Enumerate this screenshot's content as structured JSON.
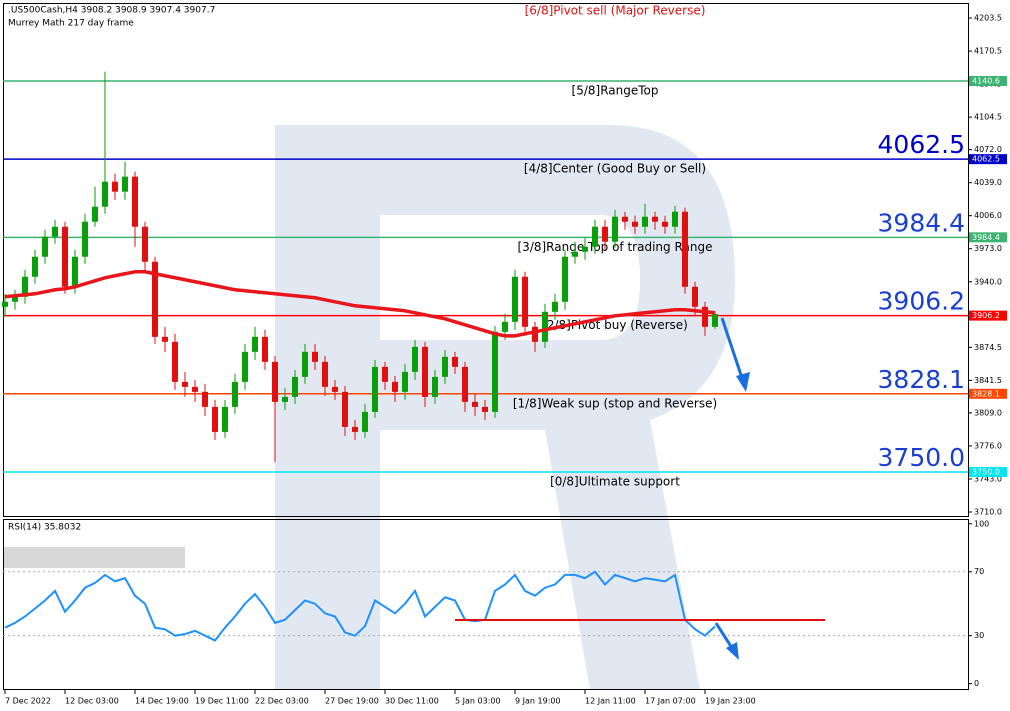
{
  "chart_data": [
    {
      "type": "candlestick",
      "title": ".US500Cash,H4  3908.2 3908.9 3907.4 3907.7",
      "subtitle": "Murrey Math 217 day frame",
      "categories": [
        "7 Dec 2022",
        null,
        null,
        null,
        null,
        null,
        "12 Dec 03:00",
        null,
        null,
        null,
        null,
        null,
        null,
        "14 Dec 19:00",
        null,
        null,
        null,
        null,
        null,
        "19 Dec 11:00",
        null,
        null,
        null,
        null,
        null,
        "22 Dec 03:00",
        null,
        null,
        null,
        null,
        null,
        null,
        "27 Dec 19:00",
        null,
        null,
        null,
        null,
        null,
        "30 Dec 11:00",
        null,
        null,
        null,
        null,
        null,
        null,
        "5 Jan 03:00",
        null,
        null,
        null,
        null,
        null,
        "9 Jan 19:00",
        null,
        null,
        null,
        null,
        null,
        null,
        "12 Jan 11:00",
        null,
        null,
        null,
        null,
        null,
        "17 Jan 07:00",
        null,
        null,
        null,
        null,
        null,
        "19 Jan 23:00",
        null
      ],
      "open": [
        3915,
        3920,
        3925,
        3945,
        3965,
        3985,
        3995,
        3935,
        3965,
        4000,
        4015,
        4040,
        4030,
        4045,
        3995,
        3960,
        3885,
        3880,
        3840,
        3835,
        3830,
        3815,
        3790,
        3815,
        3840,
        3870,
        3885,
        3860,
        3820,
        3825,
        3845,
        3870,
        3860,
        3835,
        3830,
        3795,
        3790,
        3810,
        3855,
        3840,
        3830,
        3850,
        3875,
        3825,
        3845,
        3865,
        3855,
        3820,
        3815,
        3810,
        3890,
        3900,
        3945,
        3895,
        3880,
        3910,
        3920,
        3965,
        3970,
        3975,
        3995,
        3980,
        4005,
        4000,
        3995,
        4005,
        4000,
        3995,
        4010,
        3935,
        3915,
        3895
      ],
      "high": [
        3928,
        3932,
        3952,
        3972,
        3992,
        4002,
        4000,
        3972,
        4008,
        4035,
        4150,
        4048,
        4060,
        4050,
        4000,
        3965,
        3895,
        3888,
        3850,
        3842,
        3838,
        3822,
        3822,
        3848,
        3878,
        3895,
        3892,
        3866,
        3834,
        3852,
        3878,
        3878,
        3866,
        3842,
        3836,
        3802,
        3818,
        3862,
        3860,
        3846,
        3858,
        3882,
        3880,
        3852,
        3872,
        3870,
        3860,
        3828,
        3822,
        3896,
        3908,
        3952,
        3950,
        3900,
        3918,
        3928,
        3972,
        3980,
        3984,
        4002,
        4002,
        4012,
        4010,
        4006,
        4018,
        4010,
        4006,
        4016,
        4014,
        3940,
        3920,
        3908.9
      ],
      "low": [
        3905,
        3912,
        3918,
        3938,
        3958,
        3978,
        3928,
        3928,
        3958,
        3995,
        4008,
        4022,
        4022,
        3975,
        3950,
        3878,
        3870,
        3832,
        3825,
        3820,
        3806,
        3782,
        3784,
        3808,
        3832,
        3862,
        3852,
        3760,
        3812,
        3818,
        3838,
        3852,
        3826,
        3822,
        3786,
        3782,
        3784,
        3804,
        3832,
        3820,
        3822,
        3842,
        3815,
        3818,
        3838,
        3848,
        3810,
        3806,
        3802,
        3804,
        3882,
        3892,
        3886,
        3870,
        3874,
        3902,
        3912,
        3958,
        3962,
        3968,
        3972,
        3974,
        3992,
        3988,
        3988,
        3992,
        3988,
        3988,
        3928,
        3906,
        3886,
        3893
      ],
      "close": [
        3920,
        3925,
        3945,
        3965,
        3985,
        3995,
        3935,
        3965,
        4000,
        4015,
        4040,
        4030,
        4045,
        3995,
        3960,
        3885,
        3880,
        3840,
        3835,
        3830,
        3815,
        3790,
        3815,
        3840,
        3870,
        3885,
        3860,
        3820,
        3825,
        3845,
        3870,
        3860,
        3835,
        3830,
        3795,
        3790,
        3810,
        3855,
        3840,
        3830,
        3850,
        3875,
        3825,
        3845,
        3865,
        3855,
        3820,
        3815,
        3810,
        3890,
        3900,
        3945,
        3895,
        3880,
        3910,
        3920,
        3965,
        3970,
        3975,
        3995,
        3980,
        4005,
        4000,
        3995,
        4005,
        4000,
        3995,
        4010,
        3935,
        3915,
        3895,
        3907.7
      ],
      "up_color": "#0a9e0a",
      "down_color": "#e01010",
      "ma": {
        "color": "#e8161b",
        "values": [
          3925,
          3926,
          3927,
          3928,
          3930,
          3932,
          3933,
          3935,
          3938,
          3941,
          3944,
          3946,
          3948,
          3950,
          3950,
          3948,
          3946,
          3944,
          3942,
          3940,
          3938,
          3936,
          3934,
          3932,
          3931,
          3930,
          3929,
          3928,
          3927,
          3926,
          3925,
          3924,
          3922,
          3920,
          3918,
          3916,
          3915,
          3914,
          3913,
          3912,
          3911,
          3909,
          3907,
          3905,
          3903,
          3900,
          3897,
          3894,
          3891,
          3888,
          3886,
          3886,
          3888,
          3890,
          3892,
          3894,
          3896,
          3898,
          3900,
          3902,
          3904,
          3906,
          3907,
          3908,
          3909,
          3910,
          3911,
          3912,
          3912,
          3911,
          3910,
          3909
        ]
      },
      "ylim": [
        3705,
        4221.5
      ],
      "yticks": [
        4203.5,
        4170.5,
        4137.5,
        4104.5,
        {
          "value": 4072.0,
          "label": "4072.0"
        },
        {
          "value": 4039.0,
          "label": "4039.0"
        },
        {
          "value": 4006.0,
          "label": "4006.0"
        },
        {
          "value": 3973.0,
          "label": "3973.0"
        },
        {
          "value": 3940.0,
          "label": "3940.0"
        },
        3907.5,
        3874.5,
        3841.5,
        {
          "value": 3809.0,
          "label": "3809.0"
        },
        {
          "value": 3776.0,
          "label": "3776.0"
        },
        {
          "value": 3743.0,
          "label": "3743.0"
        },
        {
          "value": 3710.0,
          "label": "3710.0"
        }
      ],
      "top_annotation": {
        "text": "[6/8]Pivot sell (Major Reverse)",
        "color": "#e01010"
      },
      "levels": [
        {
          "name": "[5/8]RangeTop",
          "value": 4140.6,
          "label": "4140.6",
          "color": "#3cb371",
          "big": false
        },
        {
          "name": "[4/8]Center (Good Buy or Sell)",
          "value": 4062.5,
          "label": "4062.5",
          "color": "#0000cd",
          "big": true
        },
        {
          "name": "[3/8]Range Top of trading Range",
          "value": 3984.4,
          "label": "3984.4",
          "color": "#3cb371",
          "big": true
        },
        {
          "name": "[2/8]Pivot buy (Reverse)",
          "value": 3906.2,
          "label": "3906.2",
          "color": "#ff0000",
          "big": true
        },
        {
          "name": "[1/8]Weak sup (stop and Reverse)",
          "value": 3828.1,
          "label": "3828.1",
          "color": "#ff4500",
          "big": true
        },
        {
          "name": "[0/8]Ultimate support",
          "value": 3750.0,
          "label": "3750.0",
          "color": "#00e5ee",
          "big": true
        }
      ]
    },
    {
      "type": "line",
      "title": "RSI(14) 35.8032",
      "series": [
        {
          "name": "RSI(14)",
          "color": "#1e90ff",
          "values": [
            35,
            38,
            42,
            47,
            52,
            58,
            45,
            52,
            60,
            63,
            68,
            64,
            66,
            55,
            50,
            35,
            34,
            30,
            31,
            33,
            30,
            27,
            35,
            42,
            50,
            56,
            48,
            38,
            40,
            46,
            52,
            50,
            44,
            42,
            32,
            30,
            36,
            52,
            48,
            44,
            50,
            58,
            42,
            48,
            54,
            52,
            40,
            39,
            40,
            58,
            62,
            68,
            58,
            55,
            60,
            62,
            68,
            68,
            66,
            70,
            62,
            68,
            66,
            64,
            66,
            65,
            64,
            68,
            40,
            34,
            30,
            35.8032
          ]
        }
      ],
      "ylim": [
        -4,
        103
      ],
      "yticks": [
        100,
        70,
        30,
        0
      ],
      "levels": [
        70,
        30
      ]
    }
  ]
}
